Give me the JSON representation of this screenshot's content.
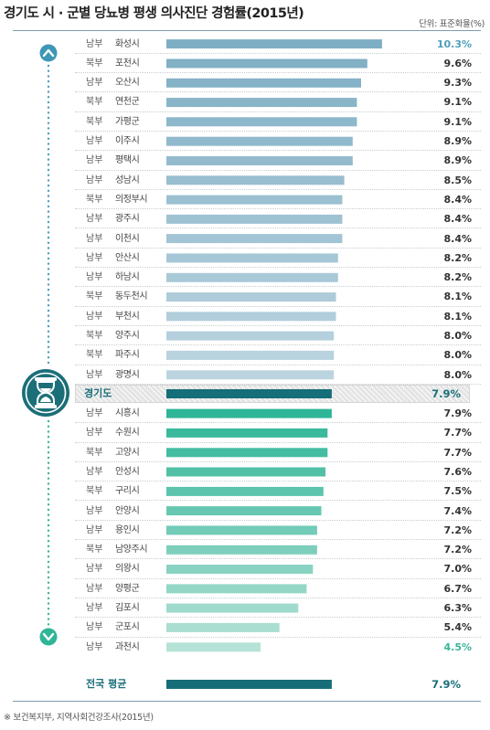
{
  "header": {
    "title": "경기도 시 · 군별 당뇨병 평생 의사진단 경험률(2015년)",
    "unit": "단위: 표준화율(%)"
  },
  "source": "※ 보건복지부, 지역사회건강조사(2015년)",
  "colors": {
    "upper_bar": "#7eaec3",
    "upper_bar_light": "#bcd4e0",
    "lower_bar": "#2fb597",
    "lower_bar_light": "#b5e2d6",
    "average_bar": "#166e78",
    "accent_blue": "#4f9fba",
    "accent_green": "#3cb49a"
  },
  "chart_data": {
    "type": "bar",
    "orientation": "horizontal",
    "title": "경기도 시 · 군별 당뇨병 평생 의사진단 경험률(2015년)",
    "unit": "단위: 표준화율(%)",
    "upper": [
      {
        "region": "남부",
        "city": "화성시",
        "value": 10.3,
        "label": "10.3%"
      },
      {
        "region": "북부",
        "city": "포천시",
        "value": 9.6,
        "label": "9.6%"
      },
      {
        "region": "남부",
        "city": "오산시",
        "value": 9.3,
        "label": "9.3%"
      },
      {
        "region": "북부",
        "city": "연천군",
        "value": 9.1,
        "label": "9.1%"
      },
      {
        "region": "북부",
        "city": "가평군",
        "value": 9.1,
        "label": "9.1%"
      },
      {
        "region": "남부",
        "city": "이주시",
        "value": 8.9,
        "label": "8.9%"
      },
      {
        "region": "남부",
        "city": "평택시",
        "value": 8.9,
        "label": "8.9%"
      },
      {
        "region": "남부",
        "city": "성남시",
        "value": 8.5,
        "label": "8.5%"
      },
      {
        "region": "북부",
        "city": "의정부시",
        "value": 8.4,
        "label": "8.4%"
      },
      {
        "region": "남부",
        "city": "광주시",
        "value": 8.4,
        "label": "8.4%"
      },
      {
        "region": "남부",
        "city": "이천시",
        "value": 8.4,
        "label": "8.4%"
      },
      {
        "region": "남부",
        "city": "안산시",
        "value": 8.2,
        "label": "8.2%"
      },
      {
        "region": "남부",
        "city": "하남시",
        "value": 8.2,
        "label": "8.2%"
      },
      {
        "region": "북부",
        "city": "동두천시",
        "value": 8.1,
        "label": "8.1%"
      },
      {
        "region": "남부",
        "city": "부천시",
        "value": 8.1,
        "label": "8.1%"
      },
      {
        "region": "북부",
        "city": "양주시",
        "value": 8.0,
        "label": "8.0%"
      },
      {
        "region": "북부",
        "city": "파주시",
        "value": 8.0,
        "label": "8.0%"
      },
      {
        "region": "남부",
        "city": "광명시",
        "value": 8.0,
        "label": "8.0%"
      }
    ],
    "gyeonggi": {
      "label": "경기도",
      "value": 7.9,
      "value_label": "7.9%"
    },
    "lower": [
      {
        "region": "남부",
        "city": "시흥시",
        "value": 7.9,
        "label": "7.9%"
      },
      {
        "region": "남부",
        "city": "수원시",
        "value": 7.7,
        "label": "7.7%"
      },
      {
        "region": "북부",
        "city": "고양시",
        "value": 7.7,
        "label": "7.7%"
      },
      {
        "region": "남부",
        "city": "안성시",
        "value": 7.6,
        "label": "7.6%"
      },
      {
        "region": "북부",
        "city": "구리시",
        "value": 7.5,
        "label": "7.5%"
      },
      {
        "region": "남부",
        "city": "안양시",
        "value": 7.4,
        "label": "7.4%"
      },
      {
        "region": "남부",
        "city": "용인시",
        "value": 7.2,
        "label": "7.2%"
      },
      {
        "region": "북부",
        "city": "남양주시",
        "value": 7.2,
        "label": "7.2%"
      },
      {
        "region": "남부",
        "city": "의왕시",
        "value": 7.0,
        "label": "7.0%"
      },
      {
        "region": "남부",
        "city": "양평군",
        "value": 6.7,
        "label": "6.7%"
      },
      {
        "region": "남부",
        "city": "김포시",
        "value": 6.3,
        "label": "6.3%"
      },
      {
        "region": "남부",
        "city": "군포시",
        "value": 5.4,
        "label": "5.4%"
      },
      {
        "region": "남부",
        "city": "과천시",
        "value": 4.5,
        "label": "4.5%"
      }
    ],
    "national": {
      "label": "전국 평균",
      "value": 7.9,
      "value_label": "7.9%"
    },
    "xlim": [
      0,
      13.5
    ],
    "grid": false,
    "legend": "none"
  }
}
